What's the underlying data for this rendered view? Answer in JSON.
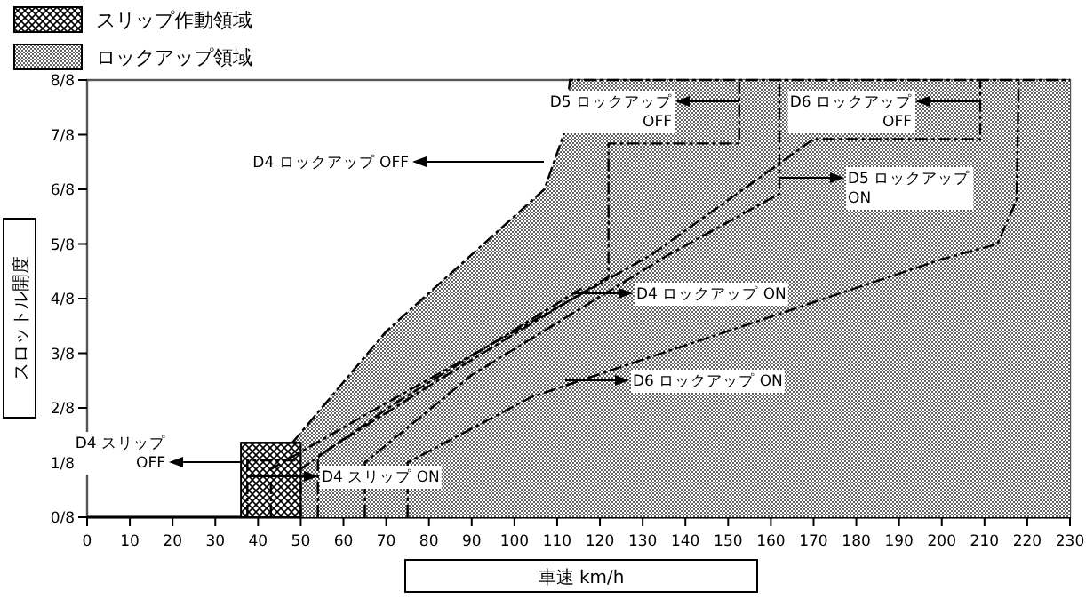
{
  "chart_data": {
    "type": "line",
    "xlabel": "車速  km/h",
    "ylabel": "スロットル開度",
    "legend": "top left",
    "xlim": [
      0,
      230
    ],
    "xticks": [
      0,
      10,
      20,
      30,
      40,
      50,
      60,
      70,
      80,
      90,
      100,
      110,
      120,
      130,
      140,
      150,
      160,
      170,
      180,
      190,
      200,
      210,
      220,
      230
    ],
    "ylim": [
      0,
      1
    ],
    "yticks": [
      {
        "value": 0,
        "label": "0/8"
      },
      {
        "value": 0.125,
        "label": "1/8"
      },
      {
        "value": 0.25,
        "label": "2/8"
      },
      {
        "value": 0.375,
        "label": "3/8"
      },
      {
        "value": 0.5,
        "label": "4/8"
      },
      {
        "value": 0.625,
        "label": "5/8"
      },
      {
        "value": 0.75,
        "label": "6/8"
      },
      {
        "value": 0.875,
        "label": "7/8"
      },
      {
        "value": 1,
        "label": "8/8"
      }
    ],
    "series": [
      {
        "name": "ロックアップ領域",
        "type": "area",
        "color": "#606060",
        "line_style": "dashed",
        "x": [
          48,
          70,
          107,
          111.5,
          113,
          230
        ],
        "values": [
          0.17,
          0.425,
          0.75,
          0.875,
          1,
          1
        ]
      },
      {
        "name": "スリップ作動領域",
        "type": "area",
        "color": "#000000",
        "x": [
          36,
          50
        ],
        "values": [
          0.17,
          0.17
        ]
      },
      {
        "color": "#000000",
        "line_style": "dashed",
        "x": [
          37.5,
          37.5,
          50
        ],
        "values": [
          0,
          0.13,
          0.13
        ]
      },
      {
        "color": "#000000",
        "line_style": "dashed",
        "x": [
          54,
          54,
          80,
          122,
          122,
          152.6,
          152.6
        ],
        "values": [
          0,
          0.14,
          0.3,
          0.55,
          0.855,
          0.855,
          1
        ]
      },
      {
        "color": "#000000",
        "line_style": "dashed",
        "x": [
          50,
          50,
          72,
          116
        ],
        "values": [
          0,
          0.11,
          0.26,
          0.525
        ]
      },
      {
        "color": "#000000",
        "line_style": "dashed",
        "x": [
          65,
          65,
          90,
          136,
          162,
          162
        ],
        "values": [
          0,
          0.125,
          0.325,
          0.6,
          0.74,
          1
        ]
      },
      {
        "color": "#000000",
        "line_style": "dashed",
        "x": [
          43,
          43,
          68,
          132,
          170,
          209,
          209
        ],
        "values": [
          0,
          0.11,
          0.25,
          0.6,
          0.865,
          0.865,
          1
        ]
      },
      {
        "color": "#000000",
        "line_style": "dashed",
        "x": [
          75,
          75,
          104,
          200,
          213,
          217.5,
          218
        ],
        "values": [
          0,
          0.125,
          0.275,
          0.59,
          0.625,
          0.725,
          1
        ]
      }
    ],
    "annotations": [
      "D4 ロックアップ OFF",
      "D5 ロックアップ\nOFF",
      "D6 ロックアップ\nOFF",
      "D5 ロックアップ\nON",
      "D4 ロックアップ ON",
      "D6 ロックアップ ON",
      "D4 スリップ\nOFF",
      "D4 スリップ ON"
    ]
  }
}
